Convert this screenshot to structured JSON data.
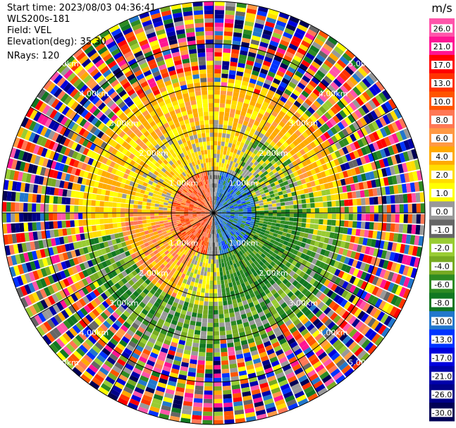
{
  "info": {
    "start_time": "Start time: 2023/08/03 04:36:41",
    "instrument": "WLS200s-181",
    "field": "Field: VEL",
    "elevation": "Elevation(deg): 35.30",
    "nrays": "NRays: 120"
  },
  "chart_data": {
    "type": "heatmap",
    "subtype": "polar-ppi",
    "field": "VEL",
    "unit": "m/s",
    "elevation_deg": 35.3,
    "n_rays": 120,
    "ring_labels": [
      "1.00km",
      "2.00km",
      "3.00km",
      "4.00km",
      "5.00km"
    ],
    "ring_ranges_km": [
      1,
      2,
      3,
      4,
      5
    ],
    "spoke_angles_deg": [
      0,
      30,
      60,
      90,
      120,
      150
    ],
    "colorbar": {
      "ticks": [
        "26.0",
        "21.0",
        "17.0",
        "13.0",
        "10.0",
        "8.0",
        "6.0",
        "4.0",
        "2.0",
        "1.0",
        "0.0",
        "-1.0",
        "-2.0",
        "-4.0",
        "-6.0",
        "-8.0",
        "-10.0",
        "-13.0",
        "-17.0",
        "-21.0",
        "-26.0",
        "-30.0"
      ],
      "colors": [
        "#ff55aa",
        "#ff1493",
        "#ff0000",
        "#ff3300",
        "#ff5500",
        "#ff7755",
        "#ff9944",
        "#ffaa00",
        "#ffdd00",
        "#ffff00",
        "#999999",
        "#666666",
        "#99cc33",
        "#77aa22",
        "#2e8b22",
        "#117722",
        "#2277cc",
        "#0033ff",
        "#0000dd",
        "#0000aa",
        "#000088",
        "#000055"
      ]
    },
    "pattern": {
      "inner_range_km": 1.0,
      "inner_left": "orange-red (positive velocity)",
      "inner_right": "blue (negative velocity)",
      "mid_ring_north": "yellow/orange",
      "mid_ring_south": "green",
      "outer_beyond_km": 3.0,
      "outer": "noise"
    }
  }
}
